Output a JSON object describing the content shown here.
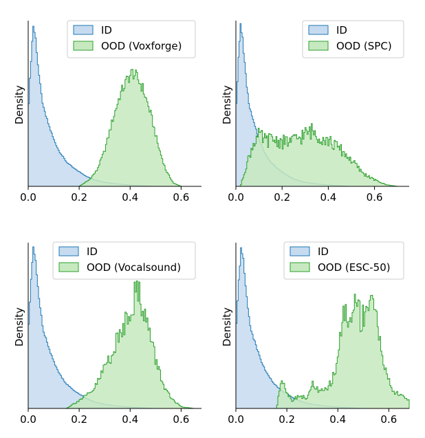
{
  "chart_data": [
    {
      "type": "histogram",
      "ylabel": "Density",
      "xlim": [
        0,
        0.68
      ],
      "xticks": [
        "0.0",
        "0.2",
        "0.4",
        "0.6"
      ],
      "legend_placement": "upper-right",
      "series": [
        {
          "name": "ID",
          "color": "#1f77b4",
          "fill": "#c6dbef",
          "x": [
            0.0,
            0.01,
            0.02,
            0.03,
            0.04,
            0.05,
            0.06,
            0.08,
            0.1,
            0.12,
            0.15,
            0.18,
            0.2,
            0.23,
            0.26,
            0.3,
            0.35,
            0.4,
            0.45,
            0.5
          ],
          "density": [
            0.45,
            0.75,
            0.99,
            0.9,
            0.72,
            0.58,
            0.48,
            0.38,
            0.29,
            0.22,
            0.15,
            0.11,
            0.09,
            0.06,
            0.04,
            0.025,
            0.015,
            0.008,
            0.004,
            0.0
          ]
        },
        {
          "name": "OOD (Voxforge)",
          "color": "#2ca02c",
          "fill": "#c7e9c0",
          "x": [
            0.2,
            0.24,
            0.27,
            0.3,
            0.33,
            0.36,
            0.39,
            0.41,
            0.43,
            0.45,
            0.48,
            0.51,
            0.54,
            0.57,
            0.6
          ],
          "density": [
            0.0,
            0.04,
            0.1,
            0.22,
            0.4,
            0.56,
            0.66,
            0.7,
            0.66,
            0.6,
            0.45,
            0.25,
            0.1,
            0.02,
            0.0
          ]
        }
      ]
    },
    {
      "type": "histogram",
      "ylabel": "Density",
      "xlim": [
        0,
        0.75
      ],
      "xticks": [
        "0.0",
        "0.2",
        "0.4",
        "0.6"
      ],
      "legend_placement": "upper-right",
      "series": [
        {
          "name": "ID",
          "color": "#1f77b4",
          "fill": "#c6dbef",
          "x": [
            0.0,
            0.01,
            0.02,
            0.03,
            0.04,
            0.05,
            0.06,
            0.08,
            0.1,
            0.12,
            0.15,
            0.18,
            0.2,
            0.23,
            0.26,
            0.3,
            0.35,
            0.4,
            0.45,
            0.5
          ],
          "density": [
            0.45,
            0.75,
            0.99,
            0.9,
            0.72,
            0.58,
            0.48,
            0.38,
            0.29,
            0.22,
            0.15,
            0.11,
            0.09,
            0.06,
            0.04,
            0.025,
            0.015,
            0.008,
            0.004,
            0.0
          ]
        },
        {
          "name": "OOD (SPC)",
          "color": "#2ca02c",
          "fill": "#c7e9c0",
          "x": [
            0.02,
            0.05,
            0.08,
            0.1,
            0.13,
            0.16,
            0.2,
            0.25,
            0.3,
            0.33,
            0.36,
            0.4,
            0.45,
            0.5,
            0.55,
            0.6,
            0.65,
            0.7
          ],
          "density": [
            0.0,
            0.15,
            0.28,
            0.31,
            0.28,
            0.29,
            0.27,
            0.28,
            0.32,
            0.34,
            0.31,
            0.28,
            0.23,
            0.16,
            0.08,
            0.04,
            0.01,
            0.0
          ]
        }
      ]
    },
    {
      "type": "histogram",
      "ylabel": "Density",
      "xlim": [
        0,
        0.68
      ],
      "xticks": [
        "0.0",
        "0.2",
        "0.4",
        "0.6"
      ],
      "legend_placement": "upper-right",
      "series": [
        {
          "name": "ID",
          "color": "#1f77b4",
          "fill": "#c6dbef",
          "x": [
            0.0,
            0.01,
            0.02,
            0.03,
            0.04,
            0.05,
            0.06,
            0.08,
            0.1,
            0.12,
            0.15,
            0.18,
            0.2,
            0.23,
            0.26,
            0.3,
            0.35,
            0.4,
            0.45,
            0.5
          ],
          "density": [
            0.45,
            0.75,
            0.99,
            0.9,
            0.72,
            0.58,
            0.48,
            0.38,
            0.29,
            0.22,
            0.15,
            0.11,
            0.09,
            0.06,
            0.04,
            0.025,
            0.015,
            0.008,
            0.004,
            0.0
          ]
        },
        {
          "name": "OOD (Vocalsound)",
          "color": "#2ca02c",
          "fill": "#c7e9c0",
          "x": [
            0.15,
            0.2,
            0.25,
            0.28,
            0.3,
            0.33,
            0.36,
            0.39,
            0.41,
            0.43,
            0.45,
            0.47,
            0.5,
            0.53,
            0.56,
            0.6,
            0.65
          ],
          "density": [
            0.0,
            0.05,
            0.1,
            0.18,
            0.26,
            0.34,
            0.45,
            0.58,
            0.66,
            0.72,
            0.64,
            0.5,
            0.3,
            0.15,
            0.06,
            0.01,
            0.0
          ]
        }
      ]
    },
    {
      "type": "histogram",
      "ylabel": "Density",
      "xlim": [
        0,
        0.68
      ],
      "xticks": [
        "0.0",
        "0.2",
        "0.4",
        "0.6"
      ],
      "legend_placement": "upper-right",
      "series": [
        {
          "name": "ID",
          "color": "#1f77b4",
          "fill": "#c6dbef",
          "x": [
            0.0,
            0.01,
            0.02,
            0.03,
            0.04,
            0.05,
            0.06,
            0.08,
            0.1,
            0.12,
            0.15,
            0.18,
            0.2,
            0.23,
            0.26,
            0.3,
            0.35,
            0.4,
            0.45,
            0.5
          ],
          "density": [
            0.45,
            0.75,
            0.99,
            0.9,
            0.72,
            0.58,
            0.48,
            0.38,
            0.29,
            0.22,
            0.15,
            0.11,
            0.09,
            0.06,
            0.04,
            0.025,
            0.015,
            0.008,
            0.004,
            0.0
          ]
        },
        {
          "name": "OOD (ESC-50)",
          "color": "#2ca02c",
          "fill": "#c7e9c0",
          "x": [
            0.16,
            0.18,
            0.2,
            0.22,
            0.25,
            0.28,
            0.3,
            0.33,
            0.36,
            0.39,
            0.41,
            0.43,
            0.45,
            0.47,
            0.49,
            0.51,
            0.53,
            0.55,
            0.57,
            0.59,
            0.62,
            0.65,
            0.68
          ],
          "density": [
            0.0,
            0.2,
            0.1,
            0.05,
            0.08,
            0.06,
            0.15,
            0.1,
            0.12,
            0.22,
            0.45,
            0.62,
            0.5,
            0.7,
            0.55,
            0.6,
            0.72,
            0.55,
            0.4,
            0.2,
            0.1,
            0.08,
            0.05
          ]
        }
      ]
    }
  ]
}
